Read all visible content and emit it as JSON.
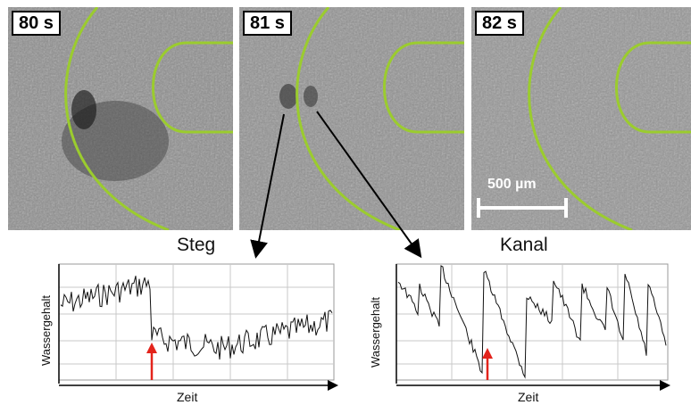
{
  "panels": [
    {
      "time_label": "80 s"
    },
    {
      "time_label": "81 s"
    },
    {
      "time_label": "82 s"
    }
  ],
  "scale_bar": {
    "label": "500 µm"
  },
  "plots": [
    {
      "title": "Steg",
      "ylabel": "Wassergehalt",
      "xlabel": "Zeit"
    },
    {
      "title": "Kanal",
      "ylabel": "Wassergehalt",
      "xlabel": "Zeit"
    }
  ],
  "colors": {
    "outline": "#9bcc2e",
    "marker": "#e3231b",
    "trace": "#111111"
  }
}
